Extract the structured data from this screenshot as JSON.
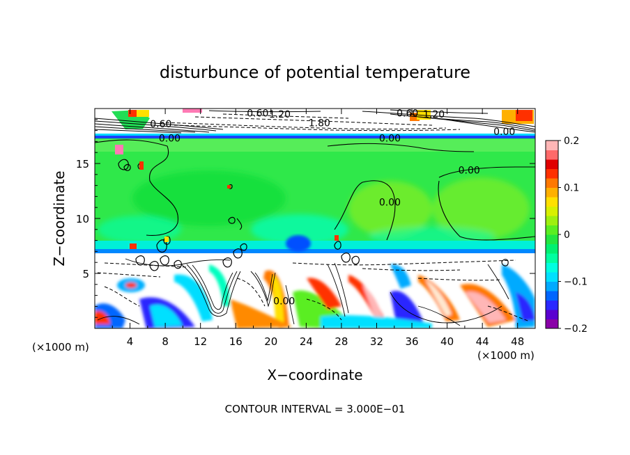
{
  "chart_data": {
    "type": "heatmap",
    "title": "disturbunce of potential temperature",
    "xlabel": "X−coordinate",
    "ylabel": "Z−coordinate",
    "x_unit_left": "(×1000 m)",
    "x_unit_right": "(×1000 m)",
    "xlim": [
      0,
      50
    ],
    "ylim": [
      0,
      20
    ],
    "x_ticks": [
      4,
      8,
      12,
      16,
      20,
      24,
      28,
      32,
      36,
      40,
      44,
      48
    ],
    "y_ticks": [
      5,
      10,
      15
    ],
    "footer": "CONTOUR INTERVAL = 3.000E−01",
    "colorbar": {
      "range": [
        -0.2,
        0.2
      ],
      "ticks": [
        {
          "value": 0.2,
          "label": "0.2"
        },
        {
          "value": 0.1,
          "label": "0.1"
        },
        {
          "value": 0,
          "label": "0"
        },
        {
          "value": -0.1,
          "label": "−0.1"
        },
        {
          "value": -0.2,
          "label": "−0.2"
        }
      ],
      "colors": [
        "#8a00a8",
        "#5a00d0",
        "#2a28ff",
        "#0066ff",
        "#00aaff",
        "#00e0ff",
        "#00ffe0",
        "#00ffa0",
        "#00f070",
        "#22e640",
        "#5aee22",
        "#9ef010",
        "#d8f000",
        "#ffe000",
        "#ffb000",
        "#ff7800",
        "#ff3000",
        "#e00000",
        "#ff6a6a",
        "#ffb6b6"
      ]
    },
    "contour_labels": [
      {
        "x": 18.5,
        "y": 19.6,
        "text": "0.60"
      },
      {
        "x": 21.0,
        "y": 19.5,
        "text": "1.20"
      },
      {
        "x": 25.5,
        "y": 18.7,
        "text": "1.80"
      },
      {
        "x": 35.5,
        "y": 19.6,
        "text": "0.60"
      },
      {
        "x": 38.5,
        "y": 19.5,
        "text": "1.20"
      },
      {
        "x": 7.5,
        "y": 18.6,
        "text": "0.60"
      },
      {
        "x": 8.5,
        "y": 17.3,
        "text": "0.00"
      },
      {
        "x": 46.5,
        "y": 17.9,
        "text": "0.00"
      },
      {
        "x": 33.5,
        "y": 17.3,
        "text": "0.00"
      },
      {
        "x": 42.5,
        "y": 14.4,
        "text": "0.00"
      },
      {
        "x": 33.5,
        "y": 11.5,
        "text": "0.00"
      },
      {
        "x": 21.5,
        "y": 2.5,
        "text": "0.00"
      }
    ]
  }
}
